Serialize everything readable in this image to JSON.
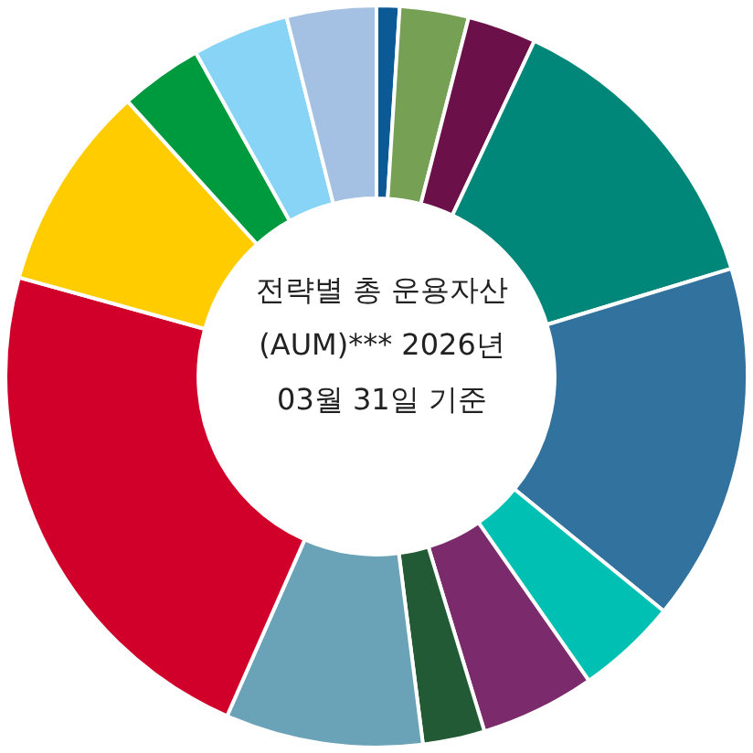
{
  "chart_data": {
    "type": "donut",
    "title": "전략별 총 운용자산(AUM)*** 2026년 03월 31일 기준",
    "categories": [
      null,
      null,
      null,
      null,
      null,
      null,
      null,
      null,
      null,
      null,
      null,
      null,
      null,
      null
    ],
    "values": [
      1,
      3,
      3,
      13.3,
      15.6,
      4.4,
      5,
      2.7,
      8.6,
      22.7,
      9,
      3.6,
      4.2,
      3.9
    ],
    "colors": [
      "#0b5a96",
      "#76a054",
      "#6b1048",
      "#00877a",
      "#31729e",
      "#00bfb3",
      "#7b2a6b",
      "#225a35",
      "#6aa3b8",
      "#d0002a",
      "#ffcc00",
      "#009a3e",
      "#87d4f7",
      "#a4c0e2"
    ],
    "legend": false
  }
}
